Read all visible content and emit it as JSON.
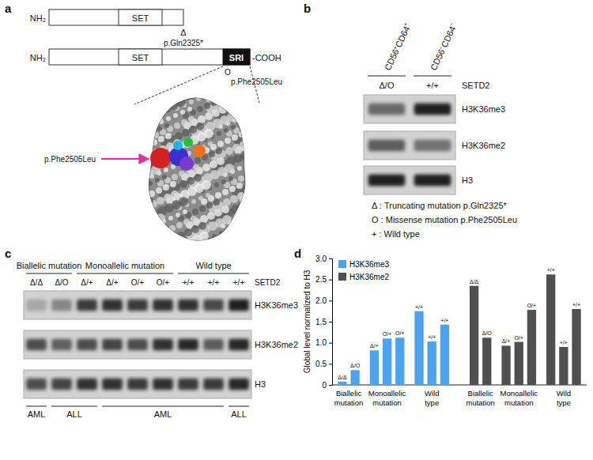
{
  "panels": {
    "a": {
      "label": "a",
      "constructs": [
        {
          "n_term": "NH₂",
          "domains": [
            "SET"
          ],
          "mutation_symbol": "Δ",
          "mutation": "p.Gln2325*"
        },
        {
          "n_term": "NH₂",
          "domains": [
            "SET",
            "SRI"
          ],
          "c_term": "-COOH",
          "mutation_symbol": "O",
          "mutation": "p.Phe2505Leu"
        }
      ],
      "structure_mutation": "p.Phe2505Leu"
    },
    "b": {
      "label": "b",
      "populations": [
        "CD56⁺CD64⁺",
        "CD56⁻CD64⁻"
      ],
      "genotypes": [
        "Δ/O",
        "+/+"
      ],
      "gene": "SETD2",
      "rows": [
        "H3K36me3",
        "H3K36me2",
        "H3"
      ],
      "key": [
        "Δ : Truncating mutation p.Gln2325*",
        "O : Missense mutation p.Phe2505Leu",
        "+ : Wild type"
      ]
    },
    "c": {
      "label": "c",
      "groups": [
        {
          "label": "Biallelic mutation",
          "count": 2
        },
        {
          "label": "Monoallelic mutation",
          "count": 4
        },
        {
          "label": "Wild type",
          "count": 3
        }
      ],
      "genotypes": [
        "Δ/Δ",
        "Δ/O",
        "Δ/+",
        "Δ/+",
        "O/+",
        "O/+",
        "+/+",
        "+/+",
        "+/+"
      ],
      "gene": "SETD2",
      "rows": [
        "H3K36me3",
        "H3K36me2",
        "H3"
      ],
      "diseases": [
        {
          "label": "AML",
          "count": 1
        },
        {
          "label": "ALL",
          "count": 2
        },
        {
          "label": "AML",
          "count": 5
        },
        {
          "label": "ALL",
          "count": 1
        }
      ]
    },
    "d": {
      "label": "d"
    }
  },
  "chart_data": {
    "type": "bar",
    "y_label": "Global level normalized to H3",
    "categories": [
      "Δ/Δ",
      "Δ/O",
      "Δ/+",
      "O/+",
      "O/+",
      "+/+",
      "+/+",
      "+/+",
      "Δ/Δ",
      "Δ/O",
      "Δ/+",
      "O/+",
      "O/+",
      "+/+",
      "+/+",
      "+/+"
    ],
    "groups": [
      {
        "label": "Biallelic mutation",
        "count": 2
      },
      {
        "label": "Monoallelic mutation",
        "count": 3
      },
      {
        "label": "Wild type",
        "count": 3
      },
      {
        "label": "Biallelic mutation",
        "count": 2
      },
      {
        "label": "Monoallelic mutation",
        "count": 3
      },
      {
        "label": "Wild type",
        "count": 3
      }
    ],
    "series": [
      {
        "name": "H3K36me3",
        "color": "#4da3ee",
        "values": [
          0.08,
          0.35,
          0.82,
          1.1,
          1.12,
          1.75,
          1.03,
          1.43,
          null,
          null,
          null,
          null,
          null,
          null,
          null,
          null
        ]
      },
      {
        "name": "H3K36me2",
        "color": "#505050",
        "values": [
          null,
          null,
          null,
          null,
          null,
          null,
          null,
          null,
          2.35,
          1.12,
          0.93,
          1.02,
          1.78,
          2.62,
          0.9,
          1.8
        ]
      }
    ],
    "ylim": [
      0,
      3
    ],
    "yticks": [
      0,
      0.5,
      {
        "value": 1,
        "label": "1.0"
      },
      1.5,
      {
        "value": 2,
        "label": "2.0"
      },
      2.5,
      {
        "value": 3,
        "label": "3.0"
      }
    ],
    "legend": "upper left"
  }
}
